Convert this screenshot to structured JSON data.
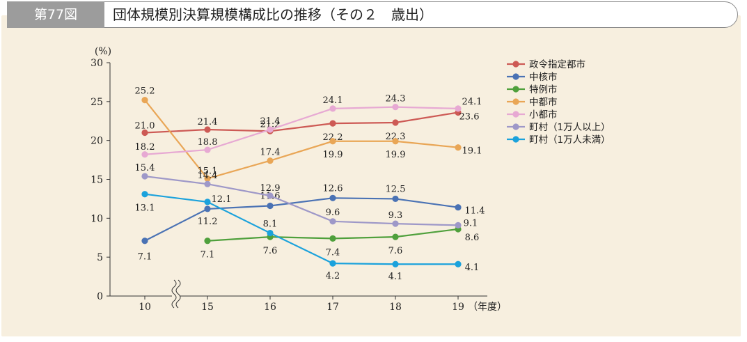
{
  "header": {
    "figure_number": "第77図",
    "title": "団体規模別決算規模構成比の推移（その２　歳出）"
  },
  "chart_data": {
    "type": "line",
    "y_unit_label": "(%)",
    "x_unit_label": "（年度）",
    "ylim": [
      0,
      30
    ],
    "yticks": [
      0,
      5,
      10,
      15,
      20,
      25,
      30
    ],
    "categories": [
      "10",
      "15",
      "16",
      "17",
      "18",
      "19"
    ],
    "axis_break_after": "10",
    "grid": false,
    "legend_position": "right",
    "series": [
      {
        "name": "政令指定都市",
        "color": "#cd5a55",
        "values": [
          21.0,
          21.4,
          21.2,
          22.2,
          22.3,
          23.6
        ],
        "labels": [
          "21.0",
          "21.4",
          "21.2",
          "22.2",
          "22.3",
          "23.6"
        ]
      },
      {
        "name": "中核市",
        "color": "#4a72b4",
        "values": [
          7.1,
          11.2,
          11.6,
          12.6,
          12.5,
          11.4
        ],
        "labels": [
          "7.1",
          "11.2",
          "11.6",
          "12.6",
          "12.5",
          "11.4"
        ]
      },
      {
        "name": "特例市",
        "color": "#4fa03c",
        "values": [
          null,
          7.1,
          7.6,
          7.4,
          7.6,
          8.6
        ],
        "labels": [
          null,
          "7.1",
          "7.6",
          "7.4",
          "7.6",
          "8.6"
        ]
      },
      {
        "name": "中都市",
        "color": "#e9a656",
        "values": [
          25.2,
          15.1,
          17.4,
          19.9,
          19.9,
          19.1
        ],
        "labels": [
          "25.2",
          "15.1",
          "17.4",
          "19.9",
          "19.9",
          "19.1"
        ]
      },
      {
        "name": "小都市",
        "color": "#e7a9d3",
        "values": [
          18.2,
          18.8,
          21.4,
          24.1,
          24.3,
          24.1
        ],
        "labels": [
          "18.2",
          "18.8",
          "21.4",
          "24.1",
          "24.3",
          "24.1"
        ]
      },
      {
        "name": "町村（1万人以上）",
        "color": "#9e98c8",
        "values": [
          15.4,
          14.4,
          12.9,
          9.6,
          9.3,
          9.1
        ],
        "labels": [
          "15.4",
          "14.4",
          "12.9",
          "9.6",
          "9.3",
          "9.1"
        ]
      },
      {
        "name": "町村（1万人未満）",
        "color": "#1ba2dc",
        "values": [
          13.1,
          12.1,
          8.1,
          4.2,
          4.1,
          4.1
        ],
        "labels": [
          "13.1",
          "12.1",
          "8.1",
          "4.2",
          "4.1",
          "4.1"
        ]
      }
    ]
  }
}
